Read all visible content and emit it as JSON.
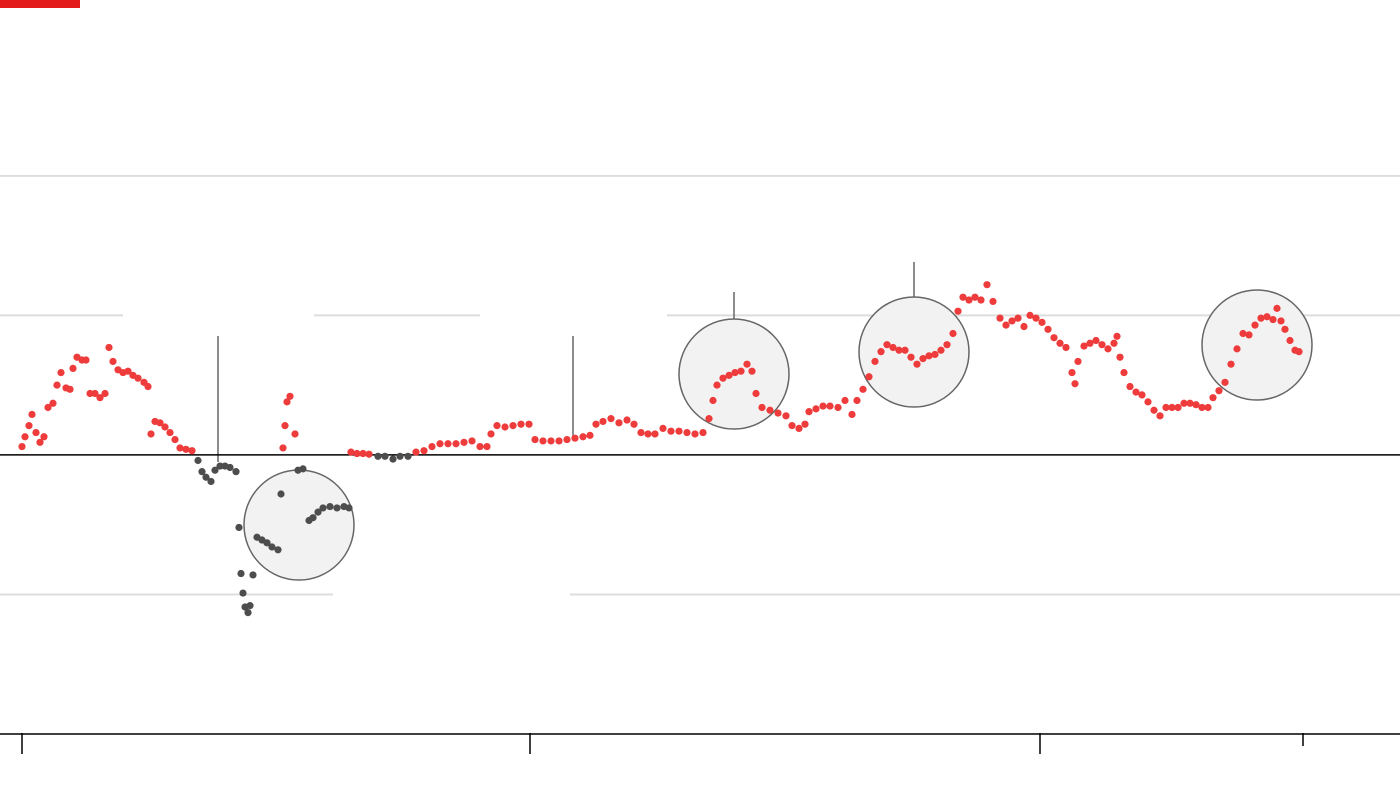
{
  "chart_data": {
    "type": "scatter",
    "xlim": [
      0,
      1400
    ],
    "xticks": [
      22,
      530,
      1040,
      1303
    ],
    "ylim": [
      -2,
      3.26
    ],
    "yticks": [
      -2,
      -1,
      0,
      1,
      2
    ],
    "grid": true,
    "series": [
      {
        "color": "#ee3b3b",
        "x": [
          22,
          25,
          29,
          32,
          36,
          40,
          44,
          48,
          53,
          57,
          61,
          66,
          70,
          73,
          77,
          82,
          86,
          90,
          95,
          100,
          105,
          109,
          113,
          118,
          123,
          128,
          133,
          138,
          144,
          148,
          151,
          155,
          160,
          165,
          170,
          175,
          180,
          186,
          192,
          283,
          285,
          287,
          290,
          295,
          351,
          357,
          363,
          369,
          416,
          424,
          432,
          440,
          448,
          456,
          464,
          472,
          480,
          487,
          491,
          497,
          505,
          513,
          521,
          529,
          535,
          543,
          551,
          559,
          567,
          575,
          583,
          590,
          596,
          603,
          611,
          619,
          627,
          634,
          641,
          648,
          655,
          663,
          671,
          679,
          687,
          695,
          703,
          709,
          713,
          717,
          723,
          729,
          735,
          741,
          747,
          752,
          756,
          762,
          770,
          778,
          786,
          792,
          799,
          805,
          809,
          816,
          823,
          830,
          838,
          845,
          852,
          857,
          863,
          869,
          875,
          881,
          887,
          893,
          899,
          905,
          911,
          917,
          923,
          929,
          935,
          941,
          947,
          953,
          958,
          963,
          969,
          975,
          981,
          987,
          993,
          1000,
          1006,
          1012,
          1018,
          1024,
          1030,
          1036,
          1042,
          1048,
          1054,
          1060,
          1066,
          1072,
          1075,
          1078,
          1084,
          1090,
          1096,
          1102,
          1108,
          1114,
          1117,
          1120,
          1124,
          1130,
          1136,
          1142,
          1148,
          1154,
          1160,
          1166,
          1172,
          1178,
          1184,
          1190,
          1196,
          1202,
          1208,
          1213,
          1219,
          1225,
          1231,
          1237,
          1243,
          1249,
          1255,
          1261,
          1267,
          1273,
          1277,
          1281,
          1285,
          1290,
          1295,
          1299
        ],
        "values": [
          0.06,
          0.13,
          0.21,
          0.29,
          0.16,
          0.09,
          0.13,
          0.34,
          0.37,
          0.5,
          0.59,
          0.48,
          0.47,
          0.62,
          0.7,
          0.68,
          0.68,
          0.44,
          0.44,
          0.41,
          0.44,
          0.77,
          0.67,
          0.61,
          0.59,
          0.6,
          0.57,
          0.55,
          0.52,
          0.49,
          0.15,
          0.24,
          0.23,
          0.2,
          0.16,
          0.11,
          0.05,
          0.04,
          0.03,
          0.05,
          0.21,
          0.38,
          0.42,
          0.15,
          0.02,
          0.01,
          0.01,
          0.005,
          0.02,
          0.03,
          0.06,
          0.08,
          0.08,
          0.08,
          0.09,
          0.1,
          0.06,
          0.06,
          0.15,
          0.21,
          0.2,
          0.21,
          0.22,
          0.22,
          0.11,
          0.1,
          0.1,
          0.1,
          0.11,
          0.12,
          0.13,
          0.14,
          0.22,
          0.24,
          0.26,
          0.23,
          0.25,
          0.22,
          0.16,
          0.15,
          0.15,
          0.19,
          0.17,
          0.17,
          0.16,
          0.15,
          0.16,
          0.26,
          0.39,
          0.5,
          0.55,
          0.57,
          0.59,
          0.6,
          0.65,
          0.6,
          0.44,
          0.34,
          0.32,
          0.3,
          0.28,
          0.21,
          0.19,
          0.22,
          0.31,
          0.33,
          0.35,
          0.35,
          0.34,
          0.39,
          0.29,
          0.39,
          0.47,
          0.56,
          0.67,
          0.74,
          0.79,
          0.77,
          0.75,
          0.75,
          0.7,
          0.65,
          0.69,
          0.71,
          0.72,
          0.75,
          0.79,
          0.87,
          1.03,
          1.13,
          1.11,
          1.13,
          1.11,
          1.22,
          1.1,
          0.98,
          0.93,
          0.96,
          0.98,
          0.92,
          1.0,
          0.98,
          0.95,
          0.9,
          0.84,
          0.8,
          0.77,
          0.59,
          0.51,
          0.67,
          0.78,
          0.8,
          0.82,
          0.79,
          0.76,
          0.8,
          0.85,
          0.7,
          0.59,
          0.49,
          0.45,
          0.43,
          0.38,
          0.32,
          0.28,
          0.34,
          0.34,
          0.34,
          0.37,
          0.37,
          0.36,
          0.34,
          0.34,
          0.41,
          0.46,
          0.52,
          0.65,
          0.76,
          0.87,
          0.86,
          0.93,
          0.98,
          0.99,
          0.97,
          1.05,
          0.96,
          0.9,
          0.82,
          0.75,
          0.74
        ]
      },
      {
        "color": "#4d4d4d",
        "x": [
          198,
          202,
          206,
          211,
          215,
          220,
          225,
          230,
          236,
          239,
          241,
          243,
          245,
          248,
          250,
          253,
          257,
          262,
          267,
          272,
          278,
          281,
          298,
          303,
          309,
          313,
          318,
          323,
          330,
          337,
          344,
          349,
          378,
          385,
          393,
          400,
          408
        ],
        "values": [
          -0.04,
          -0.12,
          -0.16,
          -0.19,
          -0.11,
          -0.08,
          -0.08,
          -0.09,
          -0.12,
          -0.52,
          -0.85,
          -0.99,
          -1.09,
          -1.13,
          -1.08,
          -0.86,
          -0.59,
          -0.61,
          -0.63,
          -0.66,
          -0.68,
          -0.28,
          -0.11,
          -0.1,
          -0.47,
          -0.45,
          -0.41,
          -0.38,
          -0.37,
          -0.38,
          -0.37,
          -0.38,
          -0.01,
          -0.01,
          -0.03,
          -0.01,
          -0.01
        ]
      }
    ]
  }
}
